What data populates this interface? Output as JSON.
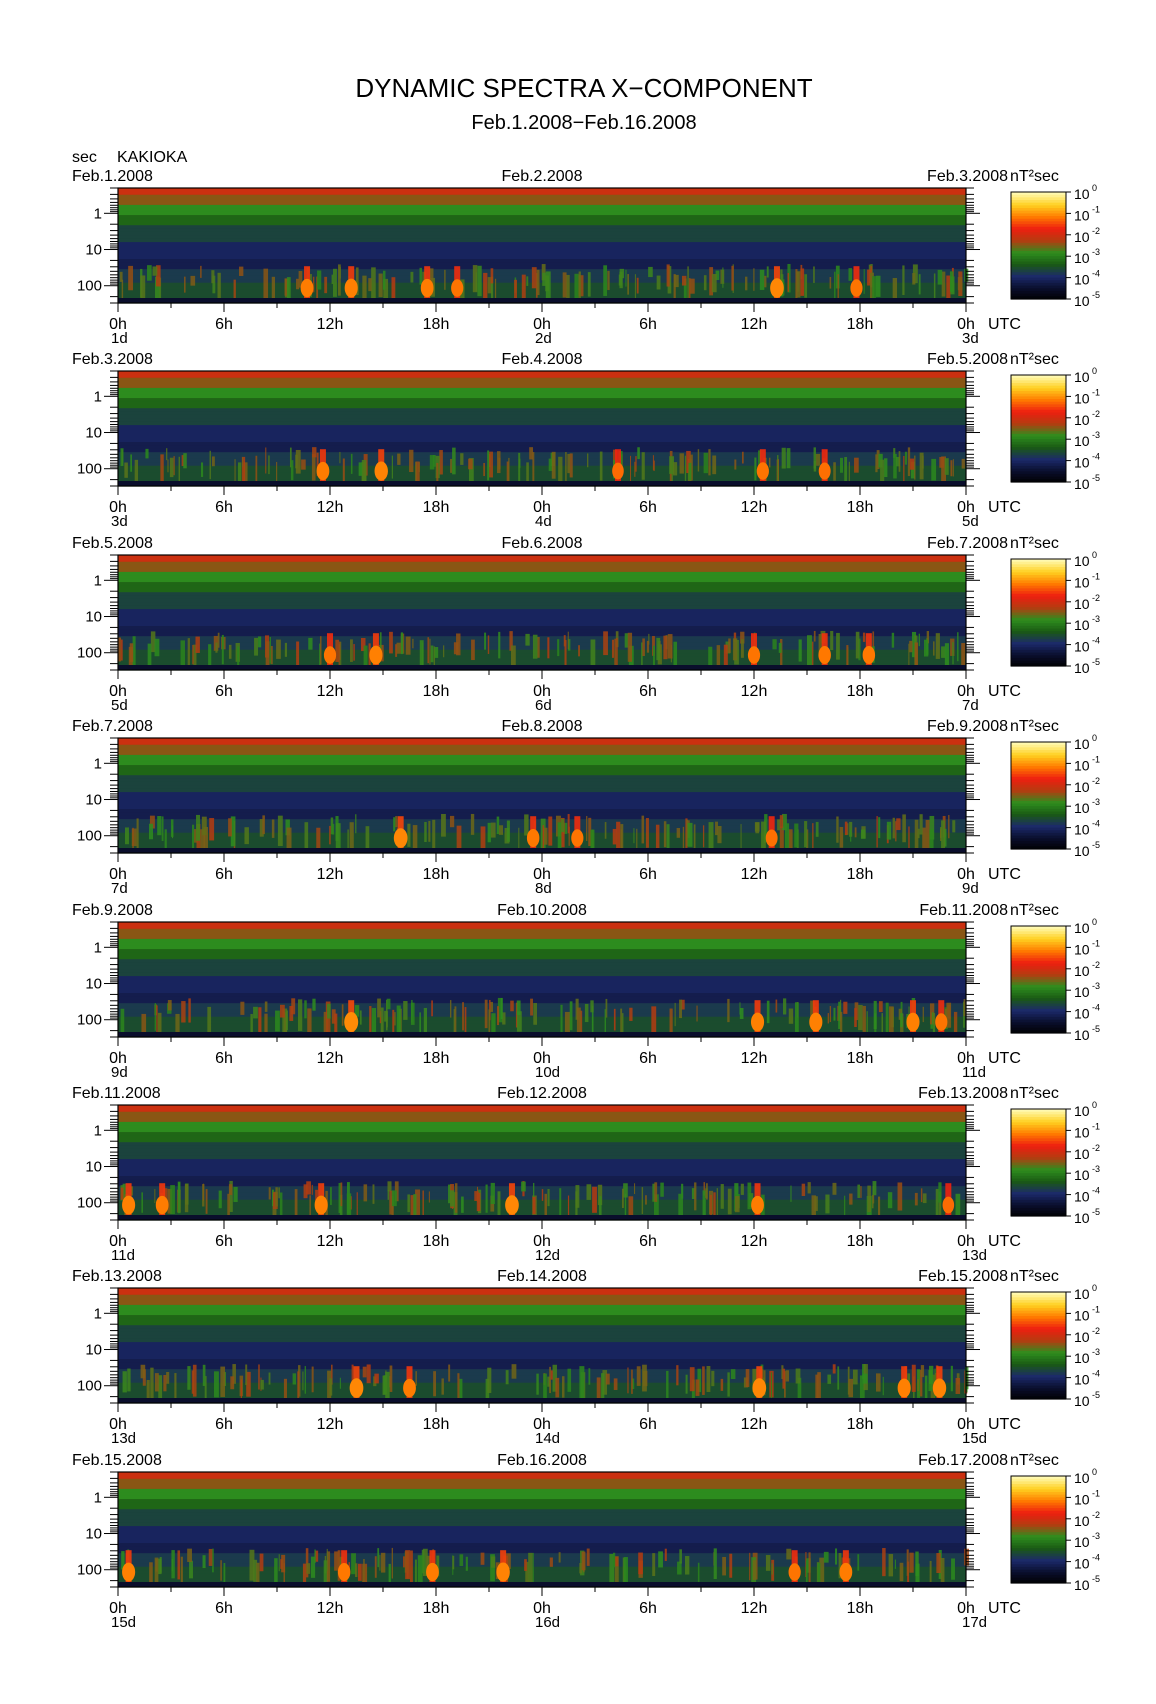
{
  "title": "DYNAMIC SPECTRA X−COMPONENT",
  "subtitle": "Feb.1.2008−Feb.16.2008",
  "station": "KAKIOKA",
  "yunit": "sec",
  "colorbar_unit": "nT²sec",
  "utc_label": "UTC",
  "chart_data": {
    "type": "heatmap",
    "component": "X",
    "y_scale": "log",
    "y_ticks": [
      "1",
      "10",
      "100"
    ],
    "y_range_sec": [
      0.2,
      300
    ],
    "x_ticks": [
      "0h",
      "6h",
      "12h",
      "18h",
      "0h",
      "6h",
      "12h",
      "18h",
      "0h"
    ],
    "color_scale": {
      "scale": "log",
      "range": [
        1e-05,
        1
      ],
      "tick_labels": [
        "10",
        "10",
        "10",
        "10",
        "10",
        "10"
      ],
      "tick_exponents": [
        "0",
        "-1",
        "-2",
        "-3",
        "-4",
        "-5"
      ],
      "colors": [
        "#fff9b0",
        "#ffd020",
        "#ff7a00",
        "#ee1e10",
        "#b43c10",
        "#2e8e1e",
        "#1a5a14",
        "#1c2a6a",
        "#0a0e2c",
        "#000000"
      ]
    },
    "panels": [
      {
        "date_left": "Feb.1.2008",
        "date_mid": "Feb.2.2008",
        "date_right": "Feb.3.2008",
        "day_start": "1d",
        "day_mid": "2d",
        "day_end": "3d",
        "events": [
          {
            "hour": 10.7,
            "level": 0.8
          },
          {
            "hour": 13.2,
            "level": 0.85
          },
          {
            "hour": 17.5,
            "level": 0.8
          },
          {
            "hour": 19.2,
            "level": 0.7
          },
          {
            "hour": 37.3,
            "level": 0.95
          },
          {
            "hour": 41.8,
            "level": 0.7
          }
        ]
      },
      {
        "date_left": "Feb.3.2008",
        "date_mid": "Feb.4.2008",
        "date_right": "Feb.5.2008",
        "day_start": "3d",
        "day_mid": "4d",
        "day_end": "5d",
        "events": [
          {
            "hour": 11.6,
            "level": 0.8
          },
          {
            "hour": 14.9,
            "level": 0.9
          },
          {
            "hour": 28.3,
            "level": 0.6
          },
          {
            "hour": 36.5,
            "level": 0.7
          },
          {
            "hour": 40.0,
            "level": 0.65
          }
        ]
      },
      {
        "date_left": "Feb.5.2008",
        "date_mid": "Feb.6.2008",
        "date_right": "Feb.7.2008",
        "day_start": "5d",
        "day_mid": "6d",
        "day_end": "7d",
        "events": [
          {
            "hour": 12.0,
            "level": 0.7
          },
          {
            "hour": 14.6,
            "level": 0.85
          },
          {
            "hour": 36.0,
            "level": 0.7
          },
          {
            "hour": 40.0,
            "level": 0.75
          },
          {
            "hour": 42.5,
            "level": 0.75
          }
        ]
      },
      {
        "date_left": "Feb.7.2008",
        "date_mid": "Feb.8.2008",
        "date_right": "Feb.9.2008",
        "day_start": "7d",
        "day_mid": "8d",
        "day_end": "9d",
        "events": [
          {
            "hour": 16.0,
            "level": 0.95
          },
          {
            "hour": 23.5,
            "level": 0.75
          },
          {
            "hour": 26.0,
            "level": 0.7
          },
          {
            "hour": 37.0,
            "level": 0.65
          }
        ]
      },
      {
        "date_left": "Feb.9.2008",
        "date_mid": "Feb.10.2008",
        "date_right": "Feb.11.2008",
        "day_start": "9d",
        "day_mid": "10d",
        "day_end": "11d",
        "events": [
          {
            "hour": 13.2,
            "level": 1.0
          },
          {
            "hour": 36.2,
            "level": 0.85
          },
          {
            "hour": 39.5,
            "level": 0.85
          },
          {
            "hour": 45.0,
            "level": 0.85
          },
          {
            "hour": 46.6,
            "level": 0.7
          }
        ]
      },
      {
        "date_left": "Feb.11.2008",
        "date_mid": "Feb.12.2008",
        "date_right": "Feb.13.2008",
        "day_start": "11d",
        "day_mid": "12d",
        "day_end": "13d",
        "events": [
          {
            "hour": 0.6,
            "level": 0.85
          },
          {
            "hour": 2.5,
            "level": 0.8
          },
          {
            "hour": 11.5,
            "level": 0.85
          },
          {
            "hour": 22.3,
            "level": 0.95
          },
          {
            "hour": 36.2,
            "level": 0.8
          },
          {
            "hour": 47.0,
            "level": 0.6
          }
        ]
      },
      {
        "date_left": "Feb.13.2008",
        "date_mid": "Feb.14.2008",
        "date_right": "Feb.15.2008",
        "day_start": "13d",
        "day_mid": "14d",
        "day_end": "15d",
        "events": [
          {
            "hour": 13.5,
            "level": 0.95
          },
          {
            "hour": 16.5,
            "level": 0.8
          },
          {
            "hour": 36.3,
            "level": 0.95
          },
          {
            "hour": 44.5,
            "level": 0.85
          },
          {
            "hour": 46.5,
            "level": 0.9
          }
        ]
      },
      {
        "date_left": "Feb.15.2008",
        "date_mid": "Feb.16.2008",
        "date_right": "Feb.17.2008",
        "day_start": "15d",
        "day_mid": "16d",
        "day_end": "17d",
        "events": [
          {
            "hour": 0.6,
            "level": 0.85
          },
          {
            "hour": 12.8,
            "level": 0.75
          },
          {
            "hour": 17.8,
            "level": 0.8
          },
          {
            "hour": 21.8,
            "level": 0.9
          },
          {
            "hour": 38.3,
            "level": 0.7
          },
          {
            "hour": 41.2,
            "level": 0.8
          }
        ]
      }
    ]
  }
}
